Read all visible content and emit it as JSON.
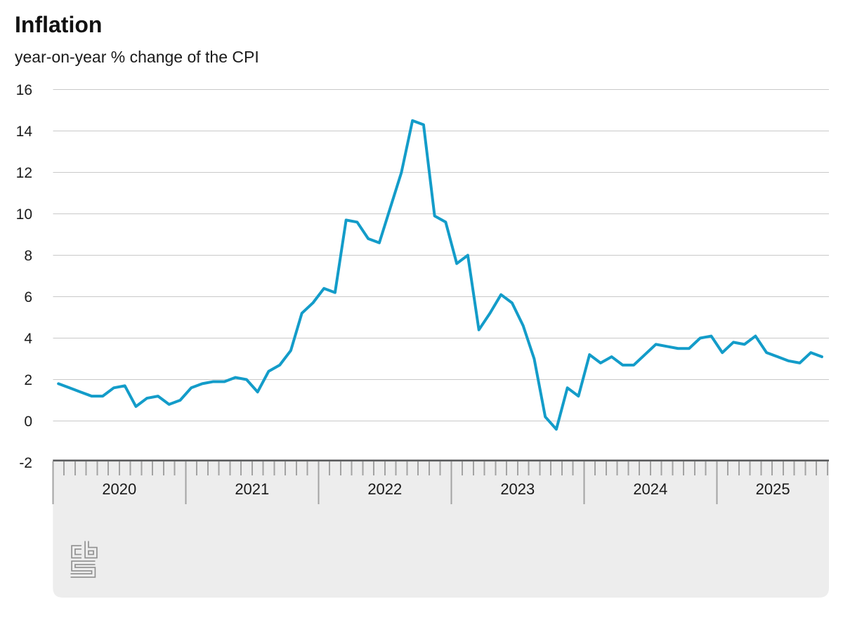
{
  "chart_data": {
    "type": "line",
    "title": "Inflation",
    "subtitle": "year-on-year % change of the CPI",
    "unit": "%",
    "y_axis": {
      "ticks": [
        16,
        14,
        12,
        10,
        8,
        6,
        4,
        2,
        0,
        -2
      ],
      "range": [
        -2,
        16
      ]
    },
    "x_axis": {
      "year_labels": [
        "2020",
        "2021",
        "2022",
        "2023",
        "2024",
        "2025"
      ],
      "start_month": "2020-01",
      "end_month": "2025-10",
      "minor_tick_unit": "month"
    },
    "series": [
      {
        "name": "CPI year-on-year % change",
        "start": "2020-01",
        "values_by_year": {
          "2020": [
            1.8,
            1.6,
            1.4,
            1.2,
            1.2,
            1.6,
            1.7,
            0.7,
            1.1,
            1.2,
            0.8,
            1.0
          ],
          "2021": [
            1.6,
            1.8,
            1.9,
            1.9,
            2.1,
            2.0,
            1.4,
            2.4,
            2.7,
            3.4,
            5.2,
            5.7
          ],
          "2022": [
            6.4,
            6.2,
            9.7,
            9.6,
            8.8,
            8.6,
            10.3,
            12.0,
            14.5,
            14.3,
            9.9,
            9.6
          ],
          "2023": [
            7.6,
            8.0,
            4.4,
            5.2,
            6.1,
            5.7,
            4.6,
            3.0,
            0.2,
            -0.4,
            1.6,
            1.2
          ],
          "2024": [
            3.2,
            2.8,
            3.1,
            2.7,
            2.7,
            3.2,
            3.7,
            3.6,
            3.5,
            3.5,
            4.0,
            4.1
          ],
          "2025": [
            3.3,
            3.8,
            3.7,
            4.1,
            3.3,
            3.1,
            2.9,
            2.8,
            3.3,
            3.1
          ]
        }
      }
    ],
    "grid": "horizontal",
    "legend": "none",
    "branding": "cbs-logo",
    "colors": {
      "line": "#139cc9",
      "gridline": "#c9c9c9",
      "axis_band_fill": "#ededed",
      "axis_line": "#58595b",
      "tick": "#a3a3a3",
      "text": "#1a1a1a",
      "logo": "#8f8f8f"
    }
  }
}
